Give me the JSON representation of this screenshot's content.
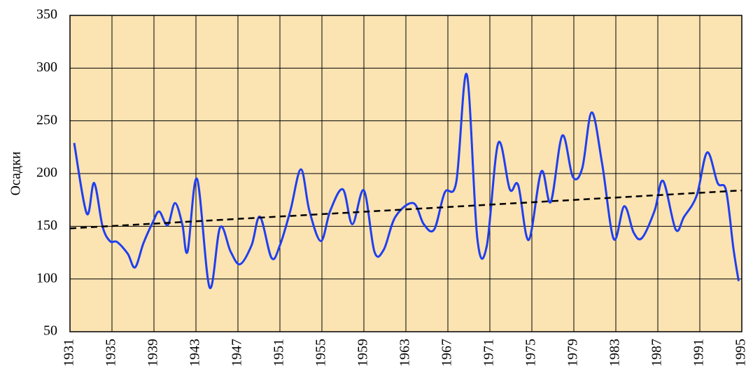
{
  "chart_data": {
    "type": "line",
    "y_label": "Осадки",
    "xlim": [
      1931,
      1995
    ],
    "xticks": [
      1931,
      1935,
      1939,
      1943,
      1947,
      1951,
      1955,
      1959,
      1963,
      1967,
      1971,
      1975,
      1979,
      1983,
      1987,
      1991,
      1995
    ],
    "ylim": [
      50,
      350
    ],
    "yticks": [
      50,
      100,
      150,
      200,
      250,
      300,
      350
    ],
    "grid": true,
    "background": "#fbe3b2",
    "series": [
      {
        "color": "#1f3ff0",
        "x": [
          1931.4,
          1932.6,
          1933.3,
          1934.1,
          1934.8,
          1935.5,
          1936.5,
          1937.2,
          1938.0,
          1938.9,
          1939.5,
          1940.3,
          1941.0,
          1941.7,
          1942.2,
          1943.1,
          1944.3,
          1945.3,
          1946.3,
          1947.2,
          1948.3,
          1949.1,
          1950.2,
          1951.0,
          1952.0,
          1953.0,
          1953.8,
          1954.9,
          1955.8,
          1957.0,
          1957.9,
          1959.0,
          1960.0,
          1960.9,
          1962.0,
          1963.7,
          1964.7,
          1965.7,
          1966.7,
          1967.8,
          1968.8,
          1969.8,
          1970.7,
          1971.8,
          1972.9,
          1973.7,
          1974.7,
          1975.9,
          1976.8,
          1977.9,
          1978.9,
          1979.8,
          1980.7,
          1981.7,
          1982.8,
          1983.8,
          1984.7,
          1985.5,
          1986.7,
          1987.5,
          1988.7,
          1989.5,
          1990.7,
          1991.7,
          1992.7,
          1993.5,
          1994.2,
          1994.7
        ],
        "values": [
          229,
          162,
          191,
          150,
          136,
          135,
          124,
          111,
          134,
          154,
          164,
          151,
          172,
          152,
          126,
          195,
          92,
          149,
          126,
          114,
          132,
          159,
          120,
          132,
          165,
          204,
          165,
          136,
          165,
          185,
          152,
          184,
          126,
          128,
          159,
          172,
          152,
          147,
          182,
          192,
          294,
          139,
          131,
          229,
          185,
          189,
          137,
          202,
          173,
          236,
          197,
          205,
          258,
          209,
          138,
          169,
          144,
          139,
          165,
          193,
          147,
          159,
          179,
          220,
          191,
          184,
          129,
          98
        ]
      }
    ],
    "trend": {
      "color": "#000000",
      "dashed": true,
      "x": [
        1931,
        1995
      ],
      "values": [
        148,
        184
      ]
    }
  }
}
